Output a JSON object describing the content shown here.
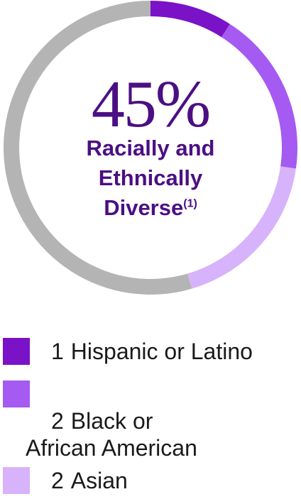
{
  "chart_data": {
    "type": "pie",
    "donut": true,
    "center_value": "45%",
    "center_label_lines": [
      "Racially and",
      "Ethnically",
      "Diverse"
    ],
    "center_footnote": "(1)",
    "slices": [
      {
        "count": "1",
        "label": "Hispanic or Latino",
        "value": 1,
        "color": "#7a12c8"
      },
      {
        "count": "2",
        "label": "Black or African American",
        "value": 2,
        "color": "#a55af2"
      },
      {
        "count": "2",
        "label": "Asian",
        "value": 2,
        "color": "#d7b3fb"
      },
      {
        "value": 6,
        "color": "#b4b4b4"
      }
    ],
    "total": 11,
    "start_angle_deg": 0
  },
  "legend": [
    {
      "count": "1",
      "label": "Hispanic or Latino",
      "color": "#7a12c8"
    },
    {
      "count": "2",
      "label": "Black or\nAfrican American",
      "color": "#a55af2"
    },
    {
      "count": "2",
      "label": "Asian",
      "color": "#d7b3fb"
    }
  ],
  "colors": {
    "title": "#4b0f83",
    "remainder": "#b4b4b4"
  }
}
